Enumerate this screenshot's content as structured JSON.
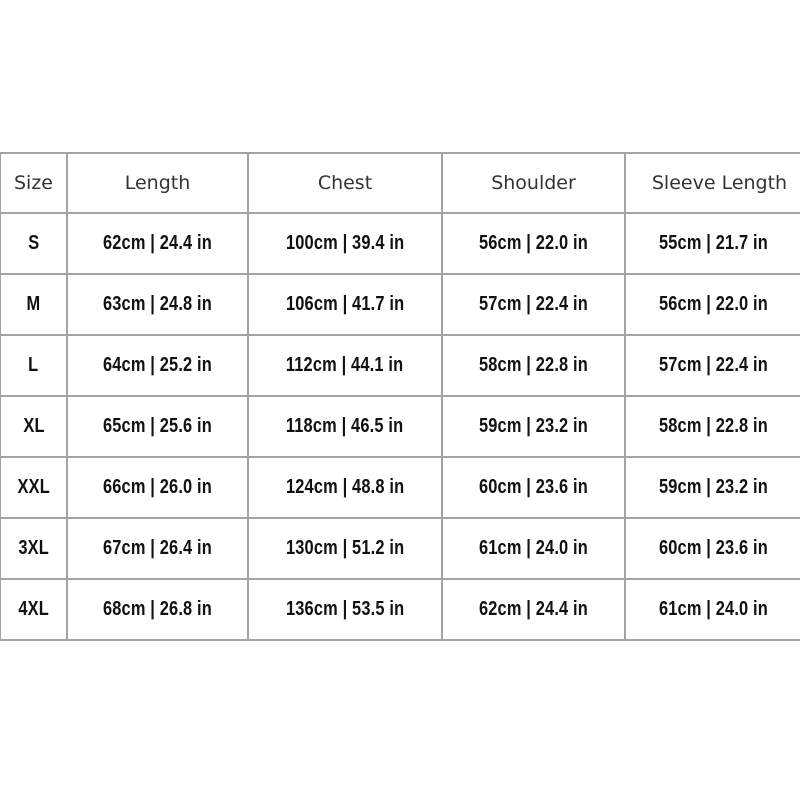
{
  "table": {
    "headers": [
      "Size",
      "Length",
      "Chest",
      "Shoulder",
      "Sleeve Length"
    ],
    "rows": [
      [
        "S",
        "62cm | 24.4 in",
        "100cm | 39.4 in",
        "56cm | 22.0 in",
        "55cm | 21.7 in"
      ],
      [
        "M",
        "63cm | 24.8 in",
        "106cm | 41.7 in",
        "57cm | 22.4 in",
        "56cm | 22.0 in"
      ],
      [
        "L",
        "64cm | 25.2 in",
        "112cm | 44.1 in",
        "58cm | 22.8 in",
        "57cm | 22.4 in"
      ],
      [
        "XL",
        "65cm | 25.6 in",
        "118cm | 46.5 in",
        "59cm | 23.2 in",
        "58cm | 22.8 in"
      ],
      [
        "XXL",
        "66cm | 26.0 in",
        "124cm | 48.8 in",
        "60cm | 23.6 in",
        "59cm | 23.2 in"
      ],
      [
        "3XL",
        "67cm | 26.4 in",
        "130cm | 51.2 in",
        "61cm | 24.0 in",
        "60cm | 23.6 in"
      ],
      [
        "4XL",
        "68cm | 26.8 in",
        "136cm | 53.5 in",
        "62cm | 24.4 in",
        "61cm | 24.0 in"
      ]
    ]
  },
  "colors": {
    "border": "#a3a3a3",
    "text": "#111111"
  }
}
